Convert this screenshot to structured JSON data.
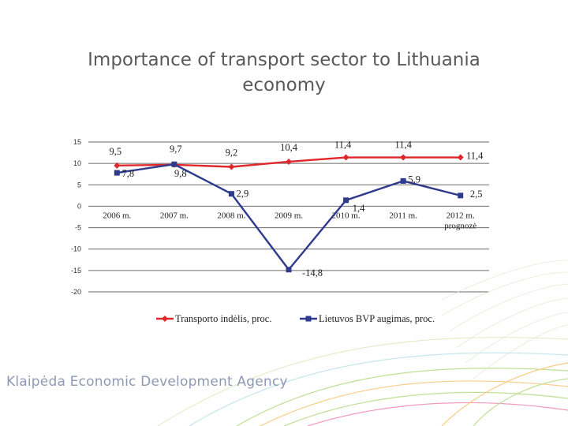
{
  "slide": {
    "title": "Importance of transport sector to Lithuania economy",
    "footer_brand": "Klaipėda Economic Development Agency"
  },
  "chart_data": {
    "type": "line",
    "categories": [
      "2006 m.",
      "2007 m.",
      "2008 m.",
      "2009 m.",
      "2010 m.",
      "2011 m.",
      "2012 m. prognozė"
    ],
    "ylim": [
      -20,
      15
    ],
    "yticks": [
      15,
      10,
      5,
      0,
      -5,
      -10,
      -15,
      -20
    ],
    "ytick_labels": [
      "15",
      "10",
      "5",
      "0",
      "-5",
      "-10",
      "-15",
      "-20"
    ],
    "series": [
      {
        "name": "Transporto indėlis, proc.",
        "color": "#e0282c",
        "marker": "diamond",
        "values": [
          9.5,
          9.7,
          9.2,
          10.4,
          11.4,
          11.4,
          11.4
        ],
        "labels": [
          "9,5",
          "9,7",
          "9,2",
          "10,4",
          "11,4",
          "11,4",
          "11,4"
        ]
      },
      {
        "name": "Lietuvos BVP augimas, proc.",
        "color": "#2e3a8c",
        "marker": "square",
        "values": [
          7.8,
          9.8,
          2.9,
          -14.8,
          1.4,
          5.9,
          2.5
        ],
        "labels": [
          "7,8",
          "9,8",
          "2,9",
          "-14,8",
          "1,4",
          "5,9",
          "2,5"
        ]
      }
    ]
  }
}
